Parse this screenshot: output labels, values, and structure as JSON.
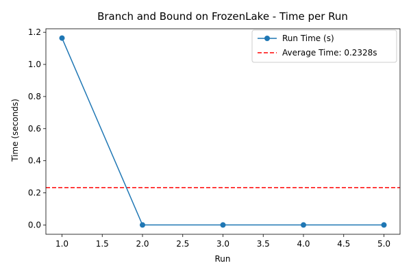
{
  "chart_data": {
    "type": "line",
    "title": "Branch and Bound on FrozenLake - Time per Run",
    "xlabel": "Run",
    "ylabel": "Time (seconds)",
    "xlim": [
      0.8,
      5.2
    ],
    "ylim": [
      -0.058,
      1.222
    ],
    "xticks": [
      1.0,
      1.5,
      2.0,
      2.5,
      3.0,
      3.5,
      4.0,
      4.5,
      5.0
    ],
    "yticks": [
      0.0,
      0.2,
      0.4,
      0.6,
      0.8,
      1.0,
      1.2
    ],
    "x": [
      1,
      2,
      3,
      4,
      5
    ],
    "series": [
      {
        "name": "Run Time (s)",
        "values": [
          1.164,
          0.0,
          0.0,
          0.0,
          0.0
        ],
        "color": "#1f77b4",
        "marker": "circle"
      }
    ],
    "reference_lines": [
      {
        "name": "Average Time: 0.2328s",
        "y": 0.2328,
        "color": "#ff0000",
        "style": "dashed"
      }
    ],
    "legend": {
      "position": "top-right",
      "entries": [
        "Run Time (s)",
        "Average Time: 0.2328s"
      ]
    },
    "grid": false
  }
}
